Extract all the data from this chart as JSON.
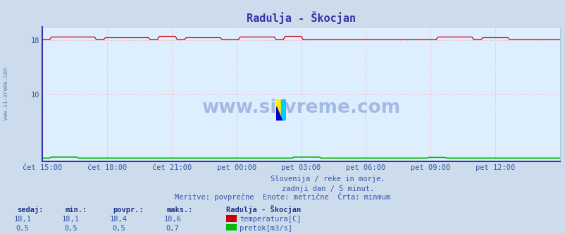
{
  "title": "Radulja - Škocjan",
  "background_color": "#ccdcec",
  "plot_bg_color": "#ddeeff",
  "grid_color": "#ffaaaa",
  "ylabel_left": "",
  "xlabel": "",
  "xlim": [
    0,
    288
  ],
  "ylim": [
    0,
    20
  ],
  "yticks": [
    10,
    18
  ],
  "x_tick_labels": [
    "čet 15:00",
    "čet 18:00",
    "čet 21:00",
    "pet 00:00",
    "pet 03:00",
    "pet 06:00",
    "pet 09:00",
    "pet 12:00"
  ],
  "x_tick_positions": [
    0,
    36,
    72,
    108,
    144,
    180,
    216,
    252
  ],
  "temp_color": "#cc0000",
  "flow_color": "#00bb00",
  "subtitle1": "Slovenija / reke in morje.",
  "subtitle2": "zadnji dan / 5 minut.",
  "subtitle3": "Meritve: povprečne  Enote: metrične  Črta: minmum",
  "legend_title": "Radulja - Škocjan",
  "legend_temp": "temperatura[C]",
  "legend_flow": "pretok[m3/s]",
  "col_headers": [
    "sedaj:",
    "min.:",
    "povpr.:",
    "maks.:"
  ],
  "temp_vals": [
    "18,1",
    "18,1",
    "18,4",
    "18,6"
  ],
  "flow_vals": [
    "0,5",
    "0,5",
    "0,5",
    "0,7"
  ],
  "watermark": "www.si-vreme.com",
  "left_label": "www.si-vreme.com",
  "title_color": "#3333aa",
  "text_color": "#3355aa",
  "header_color": "#223388",
  "border_color": "#3333aa"
}
